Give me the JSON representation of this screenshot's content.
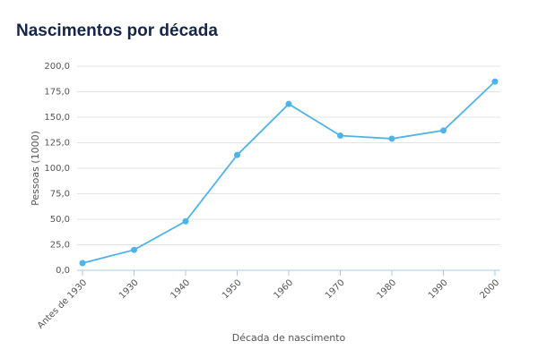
{
  "chart_data": {
    "type": "line",
    "title": "Nascimentos por década",
    "x_label": "Década de nascimento",
    "y_label": "Pessoas (1000)",
    "categories": [
      "Antes de 1930",
      "1930",
      "1940",
      "1950",
      "1960",
      "1970",
      "1980",
      "1990",
      "2000"
    ],
    "series": [
      {
        "color": "#4fb3e8",
        "values": [
          7,
          20,
          48,
          113,
          163,
          132,
          129,
          137,
          185
        ]
      }
    ],
    "ylim": [
      0,
      200
    ],
    "yticks": [
      {
        "value": 0,
        "label": "0,0"
      },
      {
        "value": 25,
        "label": "25,0"
      },
      {
        "value": 50,
        "label": "50,0"
      },
      {
        "value": 75,
        "label": "75,0"
      },
      {
        "value": 100,
        "label": "100,0"
      },
      {
        "value": 125,
        "label": "125,0"
      },
      {
        "value": 150,
        "label": "150,0"
      },
      {
        "value": 175,
        "label": "175,0"
      },
      {
        "value": 200,
        "label": "200,0"
      }
    ],
    "grid": true
  }
}
